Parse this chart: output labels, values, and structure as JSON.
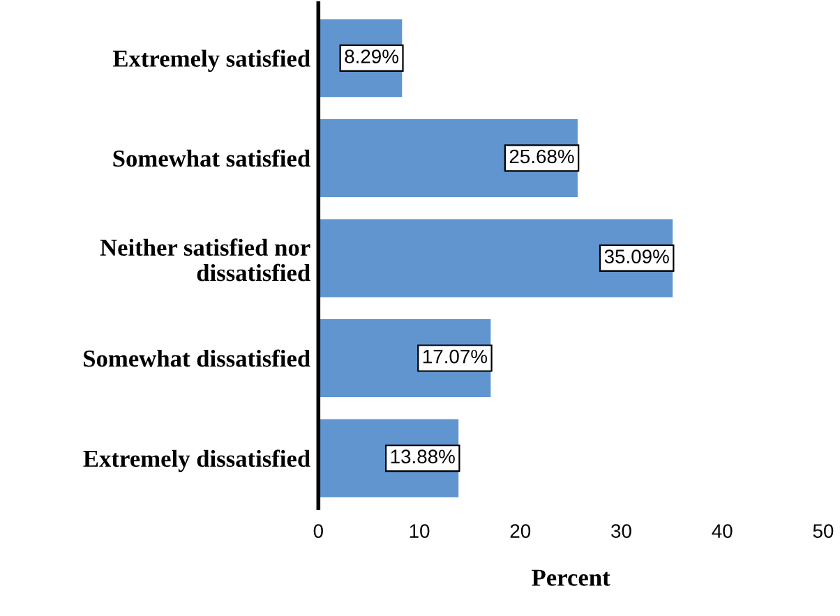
{
  "chart_data": {
    "type": "bar",
    "orientation": "horizontal",
    "xlabel": "Percent",
    "categories": [
      "Extremely satisfied",
      "Somewhat satisfied",
      "Neither satisfied nor\ndissatisfied",
      "Somewhat dissatisfied",
      "Extremely dissatisfied"
    ],
    "values": [
      8.29,
      25.68,
      35.09,
      17.07,
      13.88
    ],
    "value_labels": [
      "8.29%",
      "25.68%",
      "35.09%",
      "17.07%",
      "13.88%"
    ],
    "color": "#6095d0",
    "xlim": [
      0,
      50
    ],
    "xticks": [
      0,
      10,
      20,
      30,
      40,
      50
    ],
    "grid": false,
    "legend": false
  }
}
